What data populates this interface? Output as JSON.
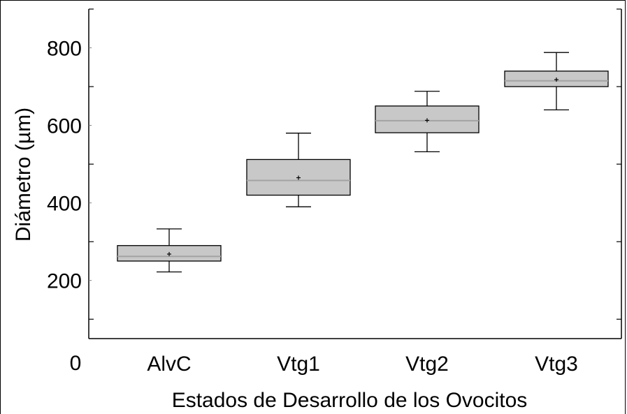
{
  "chart_data": {
    "type": "box",
    "title": "",
    "xlabel": "Estados de Desarrollo de los Ovocitos",
    "ylabel": "Diámetro (µm)",
    "categories": [
      "AlvC",
      "Vtg1",
      "Vtg2",
      "Vtg3"
    ],
    "ylim": [
      50,
      900
    ],
    "yticks": [
      200,
      400,
      600,
      800
    ],
    "origin_label": "0",
    "series": [
      {
        "boxes": [
          {
            "category": "AlvC",
            "whisker_low": 222,
            "q1": 250,
            "median": 262,
            "q3": 290,
            "whisker_high": 333,
            "mean": 268
          },
          {
            "category": "Vtg1",
            "whisker_low": 390,
            "q1": 420,
            "median": 458,
            "q3": 512,
            "whisker_high": 580,
            "mean": 465
          },
          {
            "category": "Vtg2",
            "whisker_low": 532,
            "q1": 581,
            "median": 612,
            "q3": 650,
            "whisker_high": 688,
            "mean": 613
          },
          {
            "category": "Vtg3",
            "whisker_low": 640,
            "q1": 700,
            "median": 715,
            "q3": 740,
            "whisker_high": 788,
            "mean": 718
          }
        ]
      }
    ],
    "colors": {
      "box_fill": "#c8c8c8",
      "box_stroke": "#000000",
      "median_line": "#a3a3a3",
      "axis": "#000000"
    }
  }
}
